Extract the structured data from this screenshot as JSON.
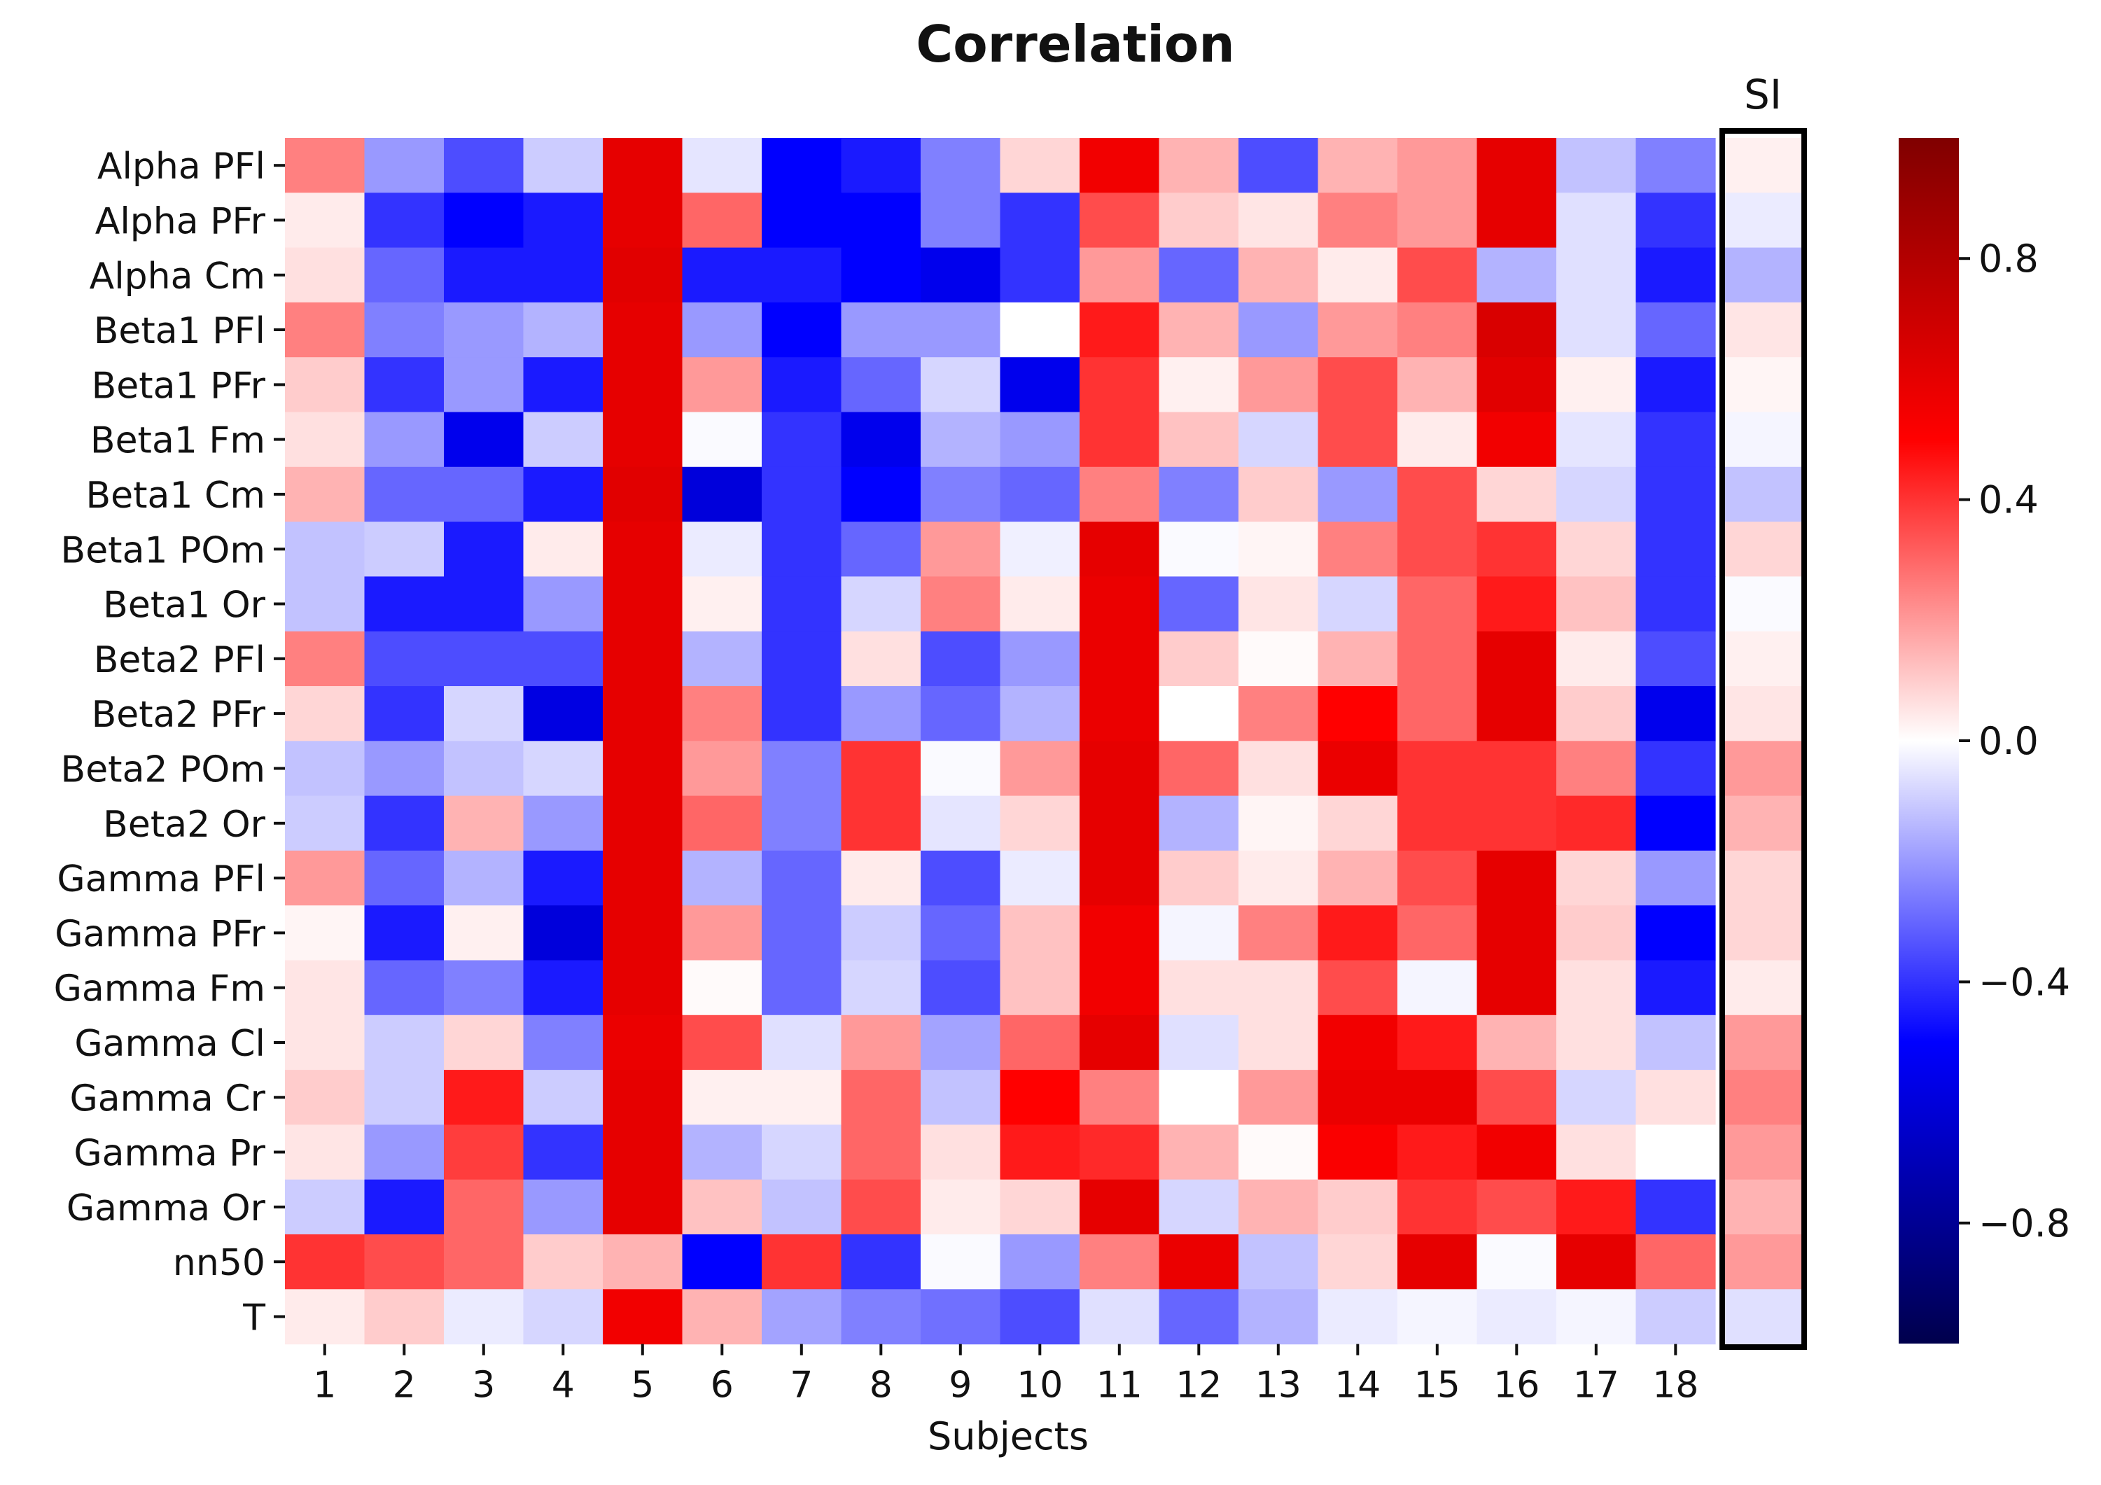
{
  "chart_data": {
    "type": "heatmap",
    "title": "Correlation",
    "xlabel": "Subjects",
    "ylabel": "",
    "rows": [
      "Alpha PFl",
      "Alpha PFr",
      "Alpha Cm",
      "Beta1 PFl",
      "Beta1 PFr",
      "Beta1 Fm",
      "Beta1 Cm",
      "Beta1 POm",
      "Beta1 Or",
      "Beta2 PFl",
      "Beta2 PFr",
      "Beta2 POm",
      "Beta2 Or",
      "Gamma PFl",
      "Gamma PFr",
      "Gamma Fm",
      "Gamma Cl",
      "Gamma Cr",
      "Gamma Pr",
      "Gamma Or",
      "nn50",
      "T"
    ],
    "columns": [
      "1",
      "2",
      "3",
      "4",
      "5",
      "6",
      "7",
      "8",
      "9",
      "10",
      "11",
      "12",
      "13",
      "14",
      "15",
      "16",
      "17",
      "18"
    ],
    "values": [
      [
        0.25,
        -0.2,
        -0.35,
        -0.1,
        0.6,
        -0.05,
        -0.5,
        -0.45,
        -0.25,
        0.08,
        0.55,
        0.15,
        -0.35,
        0.15,
        0.2,
        0.6,
        -0.12,
        -0.25
      ],
      [
        0.04,
        -0.4,
        -0.5,
        -0.45,
        0.6,
        0.3,
        -0.5,
        -0.5,
        -0.25,
        -0.4,
        0.35,
        0.1,
        0.05,
        0.25,
        0.2,
        0.6,
        -0.06,
        -0.4
      ],
      [
        0.06,
        -0.3,
        -0.45,
        -0.45,
        0.62,
        -0.45,
        -0.45,
        -0.5,
        -0.55,
        -0.4,
        0.2,
        -0.3,
        0.15,
        0.04,
        0.35,
        -0.15,
        -0.06,
        -0.45
      ],
      [
        0.25,
        -0.25,
        -0.2,
        -0.15,
        0.6,
        -0.2,
        -0.5,
        -0.2,
        -0.2,
        0.0,
        0.45,
        0.15,
        -0.2,
        0.2,
        0.25,
        0.65,
        -0.06,
        -0.3
      ],
      [
        0.1,
        -0.4,
        -0.2,
        -0.45,
        0.6,
        0.2,
        -0.45,
        -0.3,
        -0.08,
        -0.55,
        0.4,
        0.03,
        0.2,
        0.35,
        0.15,
        0.62,
        0.03,
        -0.45
      ],
      [
        0.06,
        -0.2,
        -0.55,
        -0.1,
        0.6,
        -0.01,
        -0.4,
        -0.55,
        -0.15,
        -0.2,
        0.4,
        0.12,
        -0.08,
        0.35,
        0.04,
        0.55,
        -0.05,
        -0.4
      ],
      [
        0.15,
        -0.3,
        -0.3,
        -0.45,
        0.62,
        -0.6,
        -0.4,
        -0.5,
        -0.25,
        -0.3,
        0.25,
        -0.25,
        0.1,
        -0.2,
        0.35,
        0.08,
        -0.08,
        -0.4
      ],
      [
        -0.12,
        -0.1,
        -0.45,
        0.04,
        0.6,
        -0.04,
        -0.4,
        -0.3,
        0.2,
        -0.03,
        0.6,
        -0.01,
        0.02,
        0.25,
        0.35,
        0.4,
        0.08,
        -0.4
      ],
      [
        -0.12,
        -0.45,
        -0.45,
        -0.2,
        0.6,
        0.03,
        -0.4,
        -0.08,
        0.25,
        0.04,
        0.58,
        -0.3,
        0.05,
        -0.08,
        0.3,
        0.45,
        0.12,
        -0.4
      ],
      [
        0.25,
        -0.35,
        -0.35,
        -0.35,
        0.6,
        -0.15,
        -0.4,
        0.06,
        -0.35,
        -0.2,
        0.58,
        0.1,
        0.01,
        0.15,
        0.3,
        0.6,
        0.04,
        -0.35
      ],
      [
        0.08,
        -0.4,
        -0.08,
        -0.58,
        0.6,
        0.25,
        -0.4,
        -0.2,
        -0.3,
        -0.15,
        0.58,
        0.0,
        0.25,
        0.5,
        0.3,
        0.6,
        0.1,
        -0.55
      ],
      [
        -0.12,
        -0.2,
        -0.12,
        -0.08,
        0.6,
        0.2,
        -0.25,
        0.4,
        -0.01,
        0.2,
        0.6,
        0.3,
        0.06,
        0.58,
        0.4,
        0.4,
        0.25,
        -0.4
      ],
      [
        -0.1,
        -0.4,
        0.15,
        -0.2,
        0.6,
        0.3,
        -0.25,
        0.4,
        -0.05,
        0.08,
        0.6,
        -0.15,
        0.02,
        0.08,
        0.4,
        0.4,
        0.42,
        -0.5
      ],
      [
        0.2,
        -0.3,
        -0.15,
        -0.45,
        0.6,
        -0.15,
        -0.3,
        0.04,
        -0.35,
        -0.04,
        0.6,
        0.1,
        0.04,
        0.15,
        0.35,
        0.6,
        0.08,
        -0.2
      ],
      [
        0.02,
        -0.45,
        0.03,
        -0.6,
        0.6,
        0.2,
        -0.3,
        -0.1,
        -0.3,
        0.12,
        0.55,
        -0.02,
        0.25,
        0.45,
        0.3,
        0.6,
        0.1,
        -0.5
      ],
      [
        0.05,
        -0.3,
        -0.25,
        -0.45,
        0.6,
        0.01,
        -0.3,
        -0.08,
        -0.35,
        0.12,
        0.55,
        0.06,
        0.06,
        0.35,
        -0.02,
        0.6,
        0.06,
        -0.45
      ],
      [
        0.05,
        -0.1,
        0.08,
        -0.25,
        0.58,
        0.35,
        -0.06,
        0.2,
        -0.18,
        0.3,
        0.6,
        -0.06,
        0.06,
        0.55,
        0.45,
        0.15,
        0.06,
        -0.12
      ],
      [
        0.1,
        -0.1,
        0.45,
        -0.1,
        0.6,
        0.03,
        0.03,
        0.3,
        -0.12,
        0.5,
        0.25,
        0.0,
        0.2,
        0.58,
        0.58,
        0.35,
        -0.08,
        0.06
      ],
      [
        0.05,
        -0.2,
        0.38,
        -0.4,
        0.6,
        -0.15,
        -0.08,
        0.3,
        0.06,
        0.45,
        0.42,
        0.15,
        0.01,
        0.52,
        0.45,
        0.55,
        0.06,
        0.0
      ],
      [
        -0.1,
        -0.45,
        0.3,
        -0.2,
        0.6,
        0.12,
        -0.12,
        0.35,
        0.04,
        0.08,
        0.6,
        -0.08,
        0.15,
        0.1,
        0.4,
        0.35,
        0.45,
        -0.4
      ],
      [
        0.4,
        0.35,
        0.3,
        0.1,
        0.15,
        -0.5,
        0.4,
        -0.4,
        -0.01,
        -0.2,
        0.25,
        0.58,
        -0.12,
        0.08,
        0.6,
        -0.01,
        0.6,
        0.3
      ],
      [
        0.04,
        0.1,
        -0.04,
        -0.08,
        0.55,
        0.15,
        -0.18,
        -0.25,
        -0.28,
        -0.35,
        -0.06,
        -0.3,
        -0.15,
        -0.04,
        -0.02,
        -0.04,
        -0.02,
        -0.1
      ]
    ],
    "si": {
      "label": "SI",
      "values": [
        0.03,
        -0.04,
        -0.15,
        0.05,
        0.02,
        -0.02,
        -0.12,
        0.08,
        -0.01,
        0.03,
        0.05,
        0.2,
        0.15,
        0.08,
        0.08,
        0.04,
        0.2,
        0.25,
        0.2,
        0.15,
        0.2,
        -0.06
      ]
    },
    "colorbar": {
      "cmap": "seismic",
      "range": [
        -1.0,
        1.0
      ],
      "ticks": [
        0.8,
        0.4,
        0.0,
        -0.4,
        -0.8
      ],
      "tick_labels": [
        "0.8",
        "0.4",
        "0.0",
        "−0.4",
        "−0.8"
      ]
    }
  }
}
